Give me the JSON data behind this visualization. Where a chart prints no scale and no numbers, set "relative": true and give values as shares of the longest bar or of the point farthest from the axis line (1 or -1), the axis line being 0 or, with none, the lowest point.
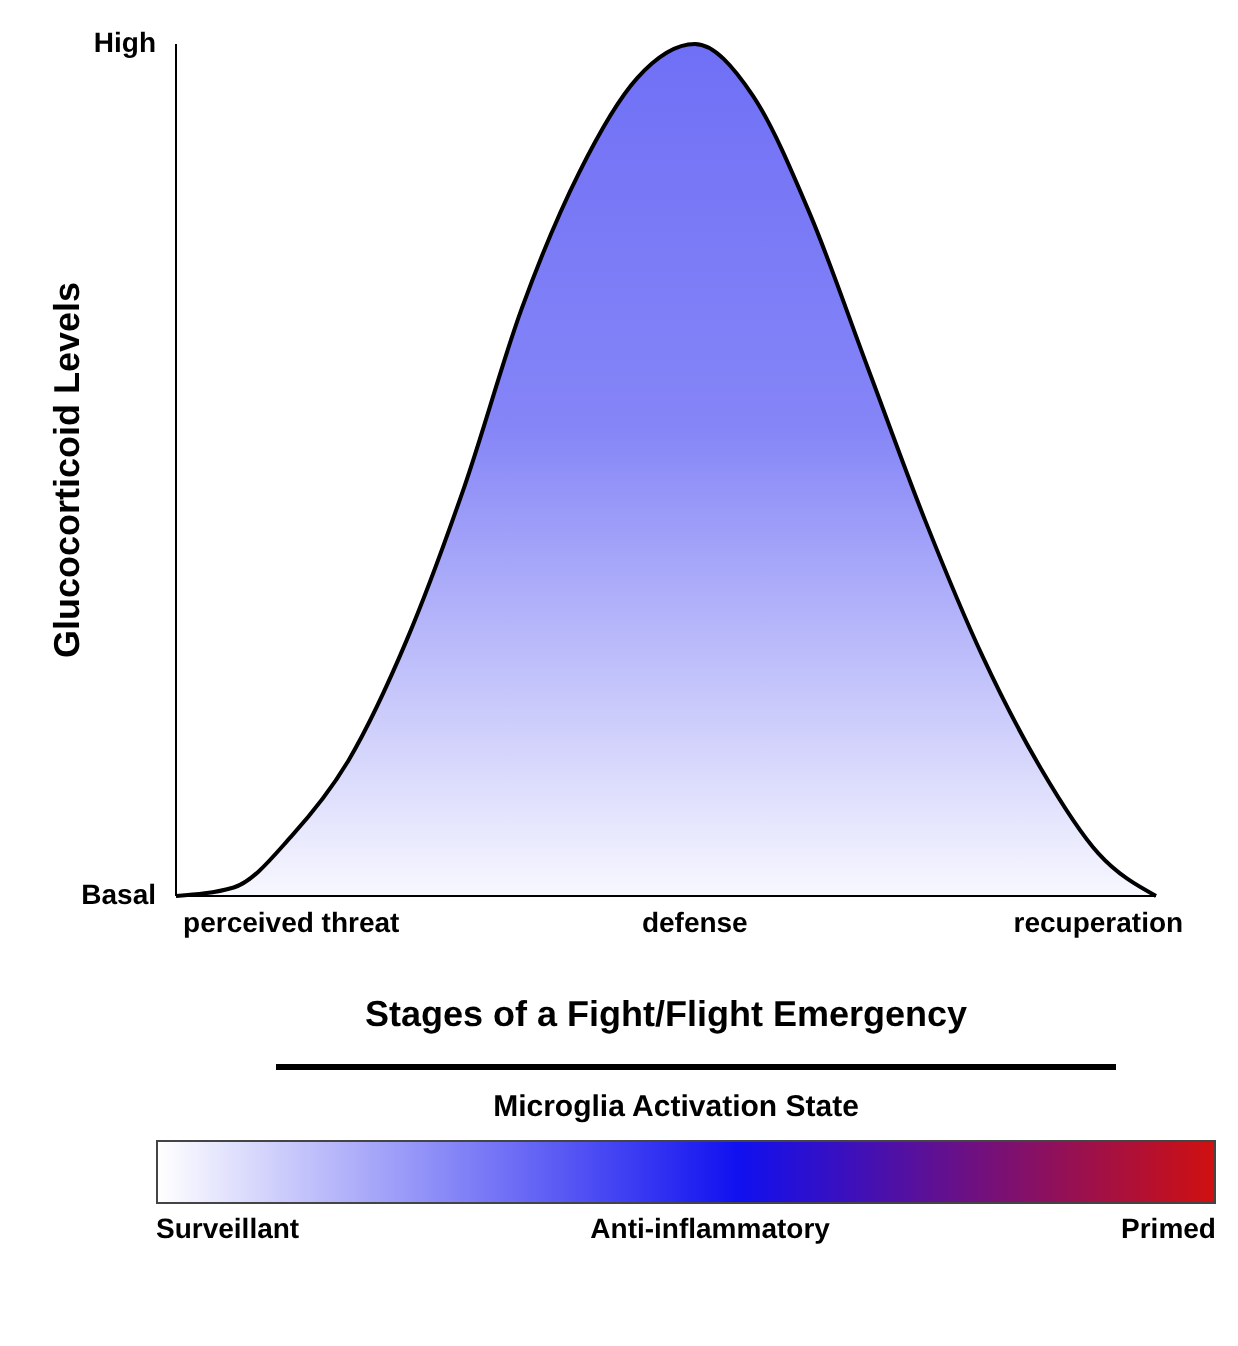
{
  "chart_data": {
    "type": "area",
    "relative": true,
    "xlabel": "Stages of a Fight/Flight Emergency",
    "ylabel": "Glucocorticoid Levels",
    "categories": [
      null,
      null,
      "perceived threat",
      null,
      null,
      null,
      null,
      null,
      null,
      "defense",
      null,
      null,
      null,
      null,
      null,
      null,
      "recuperation",
      null
    ],
    "values": [
      0,
      0.01,
      0.07,
      0.16,
      0.3,
      0.48,
      0.69,
      0.85,
      0.96,
      1,
      0.94,
      0.8,
      0.62,
      0.44,
      0.28,
      0.15,
      0.05,
      0
    ],
    "color": "#1010f0",
    "annotations": [
      "High",
      "Basal",
      "Microglia Activation State",
      "Surveillant",
      "Anti-inflammatory",
      "Primed"
    ]
  }
}
